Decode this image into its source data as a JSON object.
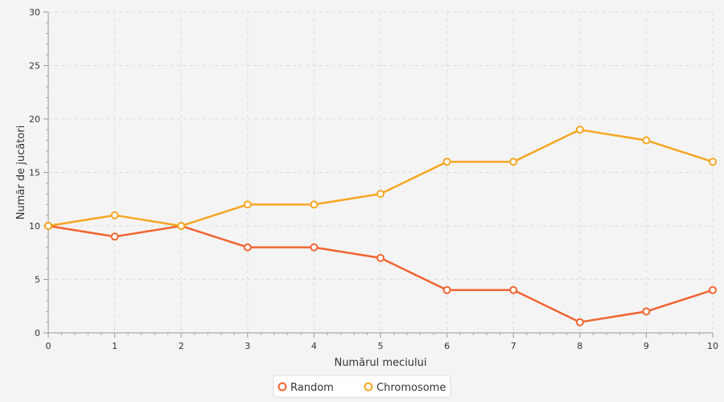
{
  "chart_data": {
    "type": "line",
    "title": "",
    "xlabel": "Numărul meciului",
    "ylabel": "Număr de jucători",
    "x": [
      0,
      1,
      2,
      3,
      4,
      5,
      6,
      7,
      8,
      9,
      10
    ],
    "xlim": [
      0,
      10
    ],
    "ylim": [
      0,
      30
    ],
    "xticks": [
      "0",
      "1",
      "2",
      "3",
      "4",
      "5",
      "6",
      "7",
      "8",
      "9",
      "10"
    ],
    "yticks": [
      "0",
      "5",
      "10",
      "15",
      "20",
      "25",
      "30"
    ],
    "grid": true,
    "legend_position": "bottom-center",
    "series": [
      {
        "name": "Random",
        "color": "#f06431",
        "values": [
          10,
          9,
          10,
          8,
          8,
          7,
          4,
          4,
          1,
          2,
          4
        ]
      },
      {
        "name": "Chromosome",
        "color": "#f5a623",
        "values": [
          10,
          11,
          10,
          12,
          12,
          13,
          16,
          16,
          19,
          18,
          16
        ]
      }
    ]
  }
}
